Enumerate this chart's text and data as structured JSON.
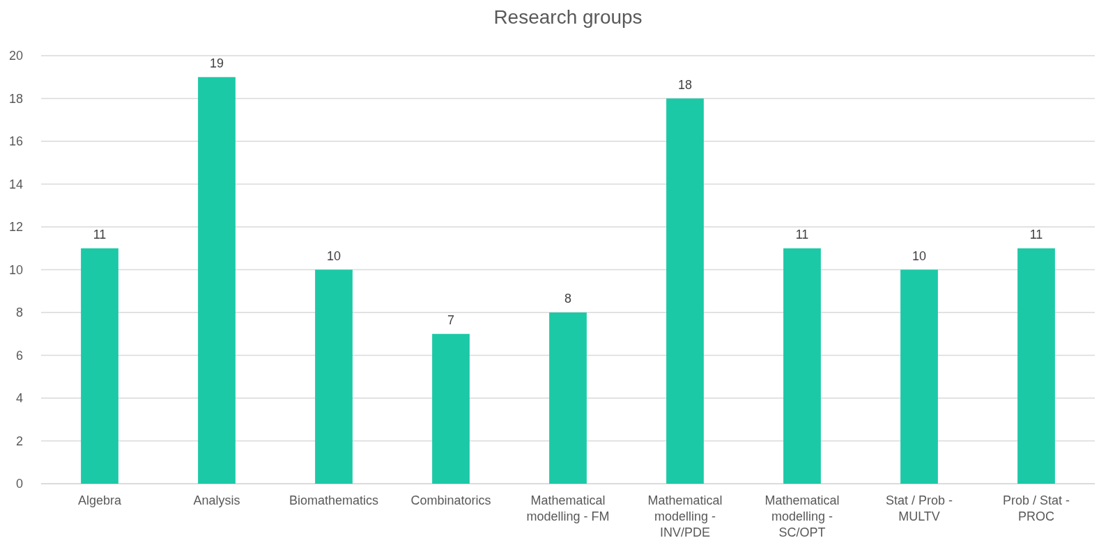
{
  "chart_data": {
    "type": "bar",
    "title": "Research groups",
    "categories": [
      "Algebra",
      "Analysis",
      "Biomathematics",
      "Combinatorics",
      "Mathematical modelling - FM",
      "Mathematical modelling - INV/PDE",
      "Mathematical modelling - SC/OPT",
      "Stat / Prob - MULTV",
      "Prob / Stat - PROC"
    ],
    "values": [
      11,
      19,
      10,
      7,
      8,
      18,
      11,
      10,
      11
    ],
    "color": "#1cc9a7",
    "ylim": [
      0,
      20
    ],
    "yticks": [
      0,
      2,
      4,
      6,
      8,
      10,
      12,
      14,
      16,
      18,
      20
    ],
    "grid": "y",
    "data_labels": true
  }
}
